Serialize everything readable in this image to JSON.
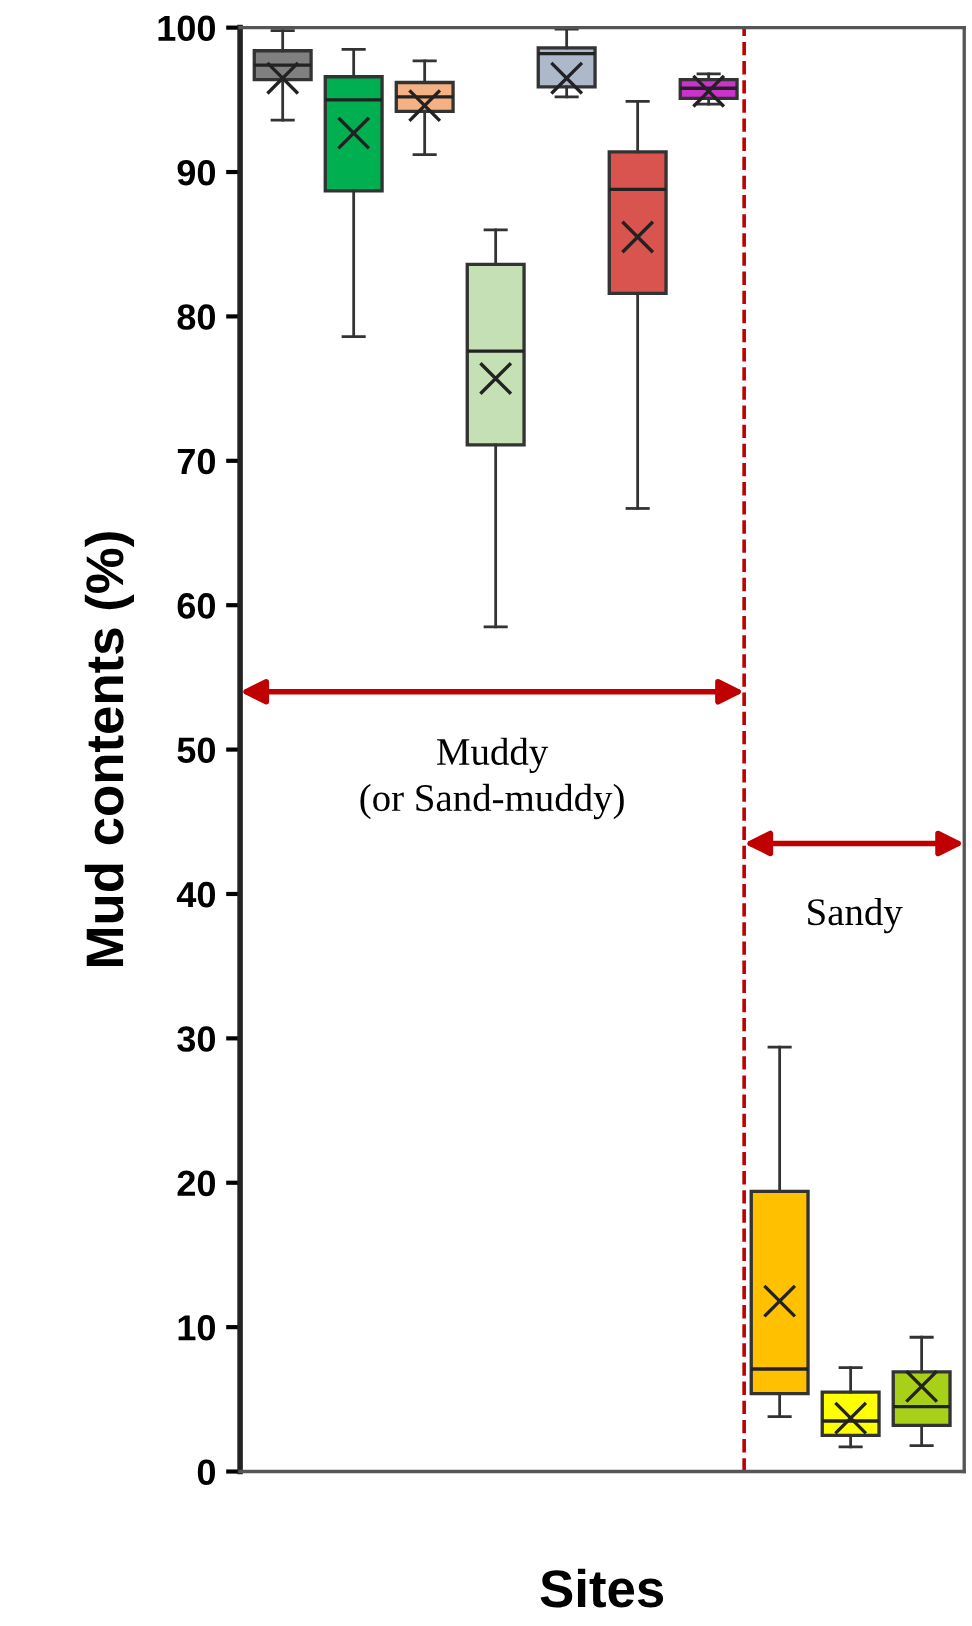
{
  "chart_data": {
    "type": "box",
    "xlabel": "Sites",
    "ylabel": "Mud contents (%)",
    "categories": [
      null,
      null,
      null,
      null,
      null,
      null,
      null,
      null,
      null,
      null
    ],
    "colors": [
      "#808080",
      "#00b050",
      "#f4b183",
      "#c5e0b4",
      "#adb9ca",
      "#d9534f",
      "#cc33cc",
      "#ffc000",
      "#ffff00",
      "#a9d018"
    ],
    "boxes": [
      {
        "low": 93.6,
        "q1": 96.4,
        "median": 97.4,
        "q3": 98.4,
        "high": 99.8,
        "mean": 96.5
      },
      {
        "low": 78.6,
        "q1": 88.7,
        "median": 95.0,
        "q3": 96.6,
        "high": 98.5,
        "mean": 92.7
      },
      {
        "low": 91.2,
        "q1": 94.2,
        "median": 95.2,
        "q3": 96.2,
        "high": 97.7,
        "mean": 94.6
      },
      {
        "low": 58.5,
        "q1": 71.1,
        "median": 77.6,
        "q3": 83.6,
        "high": 86.0,
        "mean": 75.7
      },
      {
        "low": 95.2,
        "q1": 95.9,
        "median": 98.2,
        "q3": 98.6,
        "high": 99.9,
        "mean": 96.5
      },
      {
        "low": 66.7,
        "q1": 81.6,
        "median": 88.8,
        "q3": 91.4,
        "high": 94.9,
        "mean": 85.5
      },
      {
        "low": 94.7,
        "q1": 95.1,
        "median": 95.8,
        "q3": 96.4,
        "high": 96.8,
        "mean": 95.6
      },
      {
        "low": 3.8,
        "q1": 5.4,
        "median": 7.1,
        "q3": 19.4,
        "high": 29.4,
        "mean": 11.8
      },
      {
        "low": 1.7,
        "q1": 2.5,
        "median": 3.5,
        "q3": 5.5,
        "high": 7.2,
        "mean": 3.7
      },
      {
        "low": 1.8,
        "q1": 3.2,
        "median": 4.5,
        "q3": 6.9,
        "high": 9.3,
        "mean": 5.9
      }
    ],
    "ylim": [
      0,
      100
    ],
    "yticks": [
      0,
      10,
      20,
      30,
      40,
      50,
      60,
      70,
      80,
      90,
      100
    ],
    "tick_labels": "y",
    "grid": false,
    "legend": false,
    "annotations": [
      "Muddy\n(or Sand-muddy)",
      "Sandy"
    ]
  }
}
